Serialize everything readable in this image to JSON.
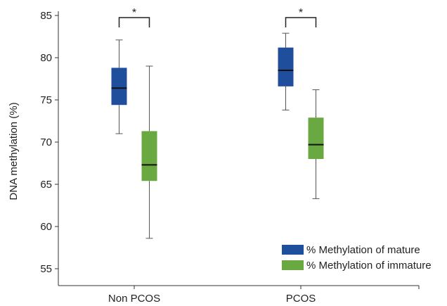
{
  "chart_data": {
    "type": "box",
    "title": "",
    "xlabel": "",
    "ylabel": "DNA methylation (%)",
    "ylim": [
      53,
      85
    ],
    "yticks": [
      55,
      60,
      65,
      70,
      75,
      80,
      85
    ],
    "categories": [
      "Non PCOS",
      "PCOS"
    ],
    "series": [
      {
        "name": "% Methylation of mature",
        "color": "#1f4e9c",
        "boxes": [
          {
            "min": 71.0,
            "q1": 74.4,
            "median": 76.4,
            "q3": 78.8,
            "max": 82.1
          },
          {
            "min": 73.8,
            "q1": 76.6,
            "median": 78.5,
            "q3": 81.2,
            "max": 82.9
          }
        ]
      },
      {
        "name": "% Methylation of immature",
        "color": "#6aa842",
        "boxes": [
          {
            "min": 58.6,
            "q1": 65.4,
            "median": 67.3,
            "q3": 71.3,
            "max": 79.0
          },
          {
            "min": 63.3,
            "q1": 68.0,
            "median": 69.7,
            "q3": 72.9,
            "max": 76.2
          }
        ]
      }
    ],
    "significance": [
      {
        "category": "Non PCOS",
        "label": "*"
      },
      {
        "category": "PCOS",
        "label": "*"
      }
    ],
    "legend_position": "bottom-right"
  }
}
